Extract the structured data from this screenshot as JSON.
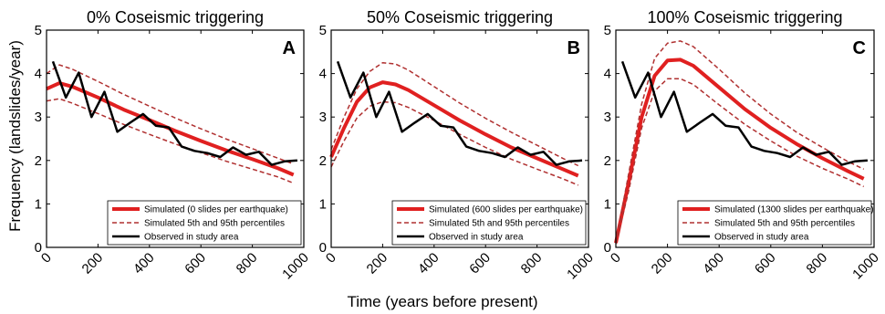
{
  "figure": {
    "ylabel": "Frequency (landslides/year)",
    "xlabel": "Time (years before present)",
    "colors": {
      "simulated": "#e02020",
      "percentile": "#b03030",
      "observed": "#000000"
    }
  },
  "chart_data": [
    {
      "type": "line",
      "title": "0% Coseismic triggering",
      "panel_label": "A",
      "xlim": [
        0,
        1000
      ],
      "ylim": [
        0,
        5
      ],
      "xticks": [
        0,
        200,
        400,
        600,
        800,
        1000
      ],
      "yticks": [
        0,
        1,
        2,
        3,
        4,
        5
      ],
      "grid": false,
      "legend_position": "bottom-right",
      "series": [
        {
          "name": "Simulated (0 slides per earthquake)",
          "style": "solid-thick",
          "x": [
            0,
            50,
            100,
            200,
            300,
            400,
            500,
            600,
            700,
            800,
            900,
            960
          ],
          "y": [
            3.65,
            3.78,
            3.7,
            3.45,
            3.17,
            2.93,
            2.68,
            2.45,
            2.23,
            2.03,
            1.82,
            1.67
          ]
        },
        {
          "name": "Simulated 5th and 95th percentiles",
          "style": "dashed",
          "x": [
            0,
            50,
            100,
            200,
            300,
            400,
            500,
            600,
            700,
            800,
            900,
            960
          ],
          "y": [
            4.0,
            4.2,
            4.1,
            3.82,
            3.52,
            3.25,
            2.98,
            2.73,
            2.49,
            2.27,
            2.05,
            1.92
          ]
        },
        {
          "name": "",
          "style": "dashed",
          "x": [
            0,
            50,
            100,
            200,
            300,
            400,
            500,
            600,
            700,
            800,
            900,
            960
          ],
          "y": [
            3.37,
            3.42,
            3.32,
            3.08,
            2.83,
            2.6,
            2.38,
            2.18,
            1.98,
            1.8,
            1.62,
            1.48
          ]
        },
        {
          "name": "Observed in study area",
          "style": "solid-black",
          "x": [
            25,
            75,
            125,
            175,
            225,
            275,
            325,
            375,
            425,
            475,
            525,
            575,
            625,
            675,
            725,
            775,
            825,
            875,
            925,
            975
          ],
          "y": [
            4.28,
            3.45,
            4.02,
            3.0,
            3.58,
            2.66,
            2.87,
            3.07,
            2.8,
            2.76,
            2.32,
            2.22,
            2.17,
            2.08,
            2.3,
            2.13,
            2.2,
            1.9,
            1.98,
            2.0
          ]
        }
      ]
    },
    {
      "type": "line",
      "title": "50% Coseismic triggering",
      "panel_label": "B",
      "xlim": [
        0,
        1000
      ],
      "ylim": [
        0,
        5
      ],
      "xticks": [
        0,
        200,
        400,
        600,
        800,
        1000
      ],
      "yticks": [
        0,
        1,
        2,
        3,
        4,
        5
      ],
      "grid": false,
      "legend_position": "bottom-right",
      "series": [
        {
          "name": "Simulated (600 slides per earthquake)",
          "style": "solid-thick",
          "x": [
            0,
            50,
            100,
            150,
            200,
            250,
            300,
            400,
            500,
            600,
            700,
            800,
            900,
            960
          ],
          "y": [
            2.08,
            2.75,
            3.35,
            3.68,
            3.8,
            3.75,
            3.62,
            3.27,
            2.92,
            2.6,
            2.3,
            2.05,
            1.8,
            1.65
          ]
        },
        {
          "name": "Simulated 5th and 95th percentiles",
          "style": "dashed",
          "x": [
            0,
            50,
            100,
            150,
            200,
            250,
            300,
            400,
            500,
            600,
            700,
            800,
            900,
            960
          ],
          "y": [
            2.25,
            3.0,
            3.65,
            4.05,
            4.25,
            4.22,
            4.08,
            3.7,
            3.32,
            2.97,
            2.65,
            2.35,
            2.05,
            1.88
          ]
        },
        {
          "name": "",
          "style": "dashed",
          "x": [
            0,
            50,
            100,
            150,
            200,
            250,
            300,
            400,
            500,
            600,
            700,
            800,
            900,
            960
          ],
          "y": [
            1.85,
            2.45,
            2.98,
            3.25,
            3.35,
            3.33,
            3.22,
            2.92,
            2.6,
            2.3,
            2.03,
            1.8,
            1.58,
            1.43
          ]
        },
        {
          "name": "Observed in study area",
          "style": "solid-black",
          "x": [
            25,
            75,
            125,
            175,
            225,
            275,
            325,
            375,
            425,
            475,
            525,
            575,
            625,
            675,
            725,
            775,
            825,
            875,
            925,
            975
          ],
          "y": [
            4.28,
            3.45,
            4.02,
            3.0,
            3.58,
            2.66,
            2.87,
            3.07,
            2.8,
            2.76,
            2.32,
            2.22,
            2.17,
            2.08,
            2.3,
            2.13,
            2.2,
            1.9,
            1.98,
            2.0
          ]
        }
      ]
    },
    {
      "type": "line",
      "title": "100% Coseismic triggering",
      "panel_label": "C",
      "xlim": [
        0,
        1000
      ],
      "ylim": [
        0,
        5
      ],
      "xticks": [
        0,
        200,
        400,
        600,
        800,
        1000
      ],
      "yticks": [
        0,
        1,
        2,
        3,
        4,
        5
      ],
      "grid": false,
      "legend_position": "bottom-right",
      "series": [
        {
          "name": "Simulated (1300 slides per earthquake)",
          "style": "solid-thick",
          "x": [
            0,
            50,
            100,
            150,
            200,
            250,
            300,
            400,
            500,
            600,
            700,
            800,
            900,
            960
          ],
          "y": [
            0.1,
            1.5,
            3.0,
            3.95,
            4.3,
            4.32,
            4.18,
            3.68,
            3.18,
            2.75,
            2.38,
            2.05,
            1.75,
            1.58
          ]
        },
        {
          "name": "Simulated 5th and 95th percentiles",
          "style": "dashed",
          "x": [
            0,
            50,
            100,
            150,
            200,
            250,
            300,
            400,
            500,
            600,
            700,
            800,
            900,
            960
          ],
          "y": [
            0.12,
            1.7,
            3.3,
            4.35,
            4.7,
            4.75,
            4.62,
            4.1,
            3.55,
            3.07,
            2.65,
            2.3,
            1.97,
            1.8
          ]
        },
        {
          "name": "",
          "style": "dashed",
          "x": [
            0,
            50,
            100,
            150,
            200,
            250,
            300,
            400,
            500,
            600,
            700,
            800,
            900,
            960
          ],
          "y": [
            0.08,
            1.3,
            2.75,
            3.6,
            3.88,
            3.88,
            3.75,
            3.28,
            2.83,
            2.45,
            2.1,
            1.82,
            1.57,
            1.4
          ]
        },
        {
          "name": "Observed in study area",
          "style": "solid-black",
          "x": [
            25,
            75,
            125,
            175,
            225,
            275,
            325,
            375,
            425,
            475,
            525,
            575,
            625,
            675,
            725,
            775,
            825,
            875,
            925,
            975
          ],
          "y": [
            4.28,
            3.45,
            4.02,
            3.0,
            3.58,
            2.66,
            2.87,
            3.07,
            2.8,
            2.76,
            2.32,
            2.22,
            2.17,
            2.08,
            2.3,
            2.13,
            2.2,
            1.9,
            1.98,
            2.0
          ]
        }
      ]
    }
  ]
}
